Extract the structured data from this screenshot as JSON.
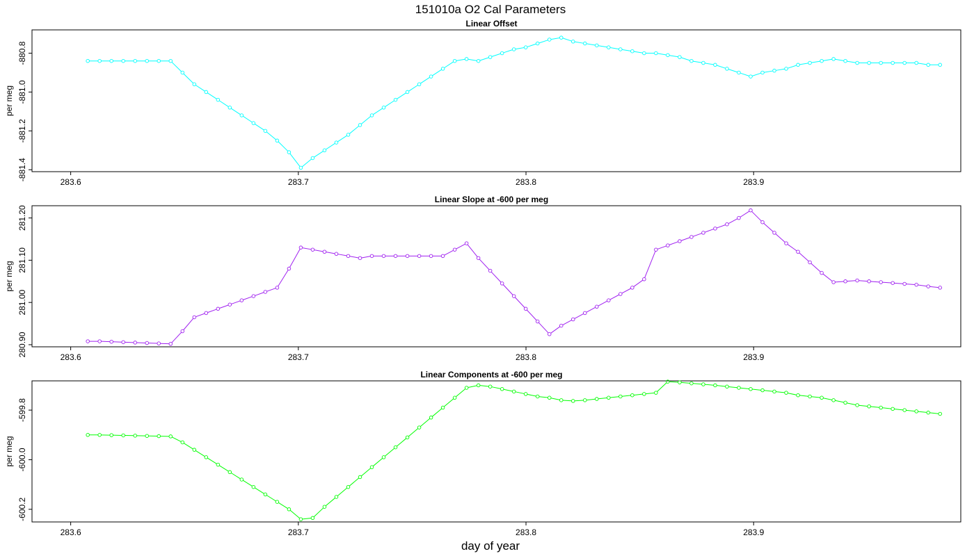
{
  "figure": {
    "title": "151010a   O2 Cal Parameters",
    "xlabel": "day of year"
  },
  "chart_data": [
    {
      "type": "line",
      "title": "Linear Offset",
      "ylabel": "per meg",
      "color": "#00ffff",
      "xlim": [
        283.583,
        283.991
      ],
      "ylim": [
        -881.41,
        -880.68
      ],
      "xticks": [
        "283.6",
        "283.7",
        "283.8",
        "283.9"
      ],
      "xtick_values": [
        283.6,
        283.7,
        283.8,
        283.9
      ],
      "yticks": [
        "-880.8",
        "-881.0",
        "-881.2",
        "-881.4"
      ],
      "ytick_values": [
        -880.8,
        -881.0,
        -881.2,
        -881.4
      ],
      "x": [
        283.6075,
        283.6127,
        283.6179,
        283.6231,
        283.6283,
        283.6335,
        283.6387,
        283.6439,
        283.6491,
        283.6543,
        283.6595,
        283.6647,
        283.6699,
        283.6751,
        283.6803,
        283.6855,
        283.6907,
        283.6959,
        283.7011,
        283.7063,
        283.7115,
        283.7167,
        283.7219,
        283.7271,
        283.7323,
        283.7375,
        283.7427,
        283.7479,
        283.7531,
        283.7583,
        283.7635,
        283.7687,
        283.7739,
        283.7791,
        283.7843,
        283.7895,
        283.7947,
        283.7999,
        283.8051,
        283.8103,
        283.8155,
        283.8207,
        283.8259,
        283.8311,
        283.8363,
        283.8415,
        283.8467,
        283.8519,
        283.8571,
        283.8623,
        283.8675,
        283.8727,
        283.8779,
        283.8831,
        283.8883,
        283.8935,
        283.8987,
        283.9039,
        283.9091,
        283.9143,
        283.9195,
        283.9247,
        283.9299,
        283.9351,
        283.9403,
        283.9455,
        283.9507,
        283.9559,
        283.9611,
        283.9663,
        283.9715,
        283.9767,
        283.9819
      ],
      "values": [
        -880.84,
        -880.84,
        -880.84,
        -880.84,
        -880.84,
        -880.84,
        -880.84,
        -880.84,
        -880.9,
        -880.96,
        -881.0,
        -881.04,
        -881.08,
        -881.12,
        -881.16,
        -881.2,
        -881.25,
        -881.31,
        -881.39,
        -881.34,
        -881.3,
        -881.26,
        -881.22,
        -881.17,
        -881.12,
        -881.08,
        -881.04,
        -881.0,
        -880.96,
        -880.92,
        -880.88,
        -880.84,
        -880.83,
        -880.84,
        -880.82,
        -880.8,
        -880.78,
        -880.77,
        -880.75,
        -880.73,
        -880.72,
        -880.74,
        -880.75,
        -880.76,
        -880.77,
        -880.78,
        -880.79,
        -880.8,
        -880.8,
        -880.81,
        -880.82,
        -880.84,
        -880.85,
        -880.86,
        -880.88,
        -880.9,
        -880.92,
        -880.9,
        -880.89,
        -880.88,
        -880.86,
        -880.85,
        -880.84,
        -880.83,
        -880.84,
        -880.85,
        -880.85,
        -880.85,
        -880.85,
        -880.85,
        -880.85,
        -880.86,
        -880.86
      ]
    },
    {
      "type": "line",
      "title": "Linear Slope at -600 per meg",
      "ylabel": "per meg",
      "color": "#a020f0",
      "xlim": [
        283.583,
        283.991
      ],
      "ylim": [
        280.895,
        281.229
      ],
      "xticks": [
        "283.6",
        "283.7",
        "283.8",
        "283.9"
      ],
      "xtick_values": [
        283.6,
        283.7,
        283.8,
        283.9
      ],
      "yticks": [
        "280.90",
        "281.00",
        "281.10",
        "281.20"
      ],
      "ytick_values": [
        280.9,
        281.0,
        281.1,
        281.2
      ],
      "x": [
        283.6075,
        283.6127,
        283.6179,
        283.6231,
        283.6283,
        283.6335,
        283.6387,
        283.6439,
        283.6491,
        283.6543,
        283.6595,
        283.6647,
        283.6699,
        283.6751,
        283.6803,
        283.6855,
        283.6907,
        283.6959,
        283.7011,
        283.7063,
        283.7115,
        283.7167,
        283.7219,
        283.7271,
        283.7323,
        283.7375,
        283.7427,
        283.7479,
        283.7531,
        283.7583,
        283.7635,
        283.7687,
        283.7739,
        283.7791,
        283.7843,
        283.7895,
        283.7947,
        283.7999,
        283.8051,
        283.8103,
        283.8155,
        283.8207,
        283.8259,
        283.8311,
        283.8363,
        283.8415,
        283.8467,
        283.8519,
        283.8571,
        283.8623,
        283.8675,
        283.8727,
        283.8779,
        283.8831,
        283.8883,
        283.8935,
        283.8987,
        283.9039,
        283.9091,
        283.9143,
        283.9195,
        283.9247,
        283.9299,
        283.9351,
        283.9403,
        283.9455,
        283.9507,
        283.9559,
        283.9611,
        283.9663,
        283.9715,
        283.9767,
        283.9819
      ],
      "values": [
        280.908,
        280.908,
        280.907,
        280.906,
        280.905,
        280.904,
        280.903,
        280.902,
        280.932,
        280.965,
        280.975,
        280.985,
        280.995,
        281.005,
        281.015,
        281.025,
        281.035,
        281.08,
        281.13,
        281.125,
        281.12,
        281.115,
        281.11,
        281.105,
        281.11,
        281.11,
        281.11,
        281.11,
        281.11,
        281.11,
        281.11,
        281.125,
        281.14,
        281.105,
        281.075,
        281.045,
        281.015,
        280.985,
        280.955,
        280.925,
        280.945,
        280.96,
        280.975,
        280.99,
        281.005,
        281.02,
        281.035,
        281.055,
        281.125,
        281.135,
        281.145,
        281.155,
        281.165,
        281.175,
        281.185,
        281.2,
        281.218,
        281.19,
        281.165,
        281.14,
        281.12,
        281.095,
        281.07,
        281.048,
        281.05,
        281.052,
        281.05,
        281.048,
        281.046,
        281.044,
        281.042,
        281.038,
        281.035
      ]
    },
    {
      "type": "line",
      "title": "Linear Components at -600 per meg",
      "ylabel": "per meg",
      "color": "#00ff00",
      "xlim": [
        283.583,
        283.991
      ],
      "ylim": [
        -600.251,
        -599.682
      ],
      "xticks": [
        "283.6",
        "283.7",
        "283.8",
        "283.9"
      ],
      "xtick_values": [
        283.6,
        283.7,
        283.8,
        283.9
      ],
      "yticks": [
        "-599.8",
        "-600.0",
        "-600.2"
      ],
      "ytick_values": [
        -599.8,
        -600.0,
        -600.2
      ],
      "x": [
        283.6075,
        283.6127,
        283.6179,
        283.6231,
        283.6283,
        283.6335,
        283.6387,
        283.6439,
        283.6491,
        283.6543,
        283.6595,
        283.6647,
        283.6699,
        283.6751,
        283.6803,
        283.6855,
        283.6907,
        283.6959,
        283.7011,
        283.7063,
        283.7115,
        283.7167,
        283.7219,
        283.7271,
        283.7323,
        283.7375,
        283.7427,
        283.7479,
        283.7531,
        283.7583,
        283.7635,
        283.7687,
        283.7739,
        283.7791,
        283.7843,
        283.7895,
        283.7947,
        283.7999,
        283.8051,
        283.8103,
        283.8155,
        283.8207,
        283.8259,
        283.8311,
        283.8363,
        283.8415,
        283.8467,
        283.8519,
        283.8571,
        283.8623,
        283.8675,
        283.8727,
        283.8779,
        283.8831,
        283.8883,
        283.8935,
        283.8987,
        283.9039,
        283.9091,
        283.9143,
        283.9195,
        283.9247,
        283.9299,
        283.9351,
        283.9403,
        283.9455,
        283.9507,
        283.9559,
        283.9611,
        283.9663,
        283.9715,
        283.9767,
        283.9819
      ],
      "values": [
        -599.9,
        -599.9,
        -599.901,
        -599.902,
        -599.903,
        -599.904,
        -599.905,
        -599.906,
        -599.93,
        -599.96,
        -599.99,
        -600.02,
        -600.05,
        -600.08,
        -600.11,
        -600.14,
        -600.17,
        -600.2,
        -600.24,
        -600.235,
        -600.19,
        -600.15,
        -600.11,
        -600.07,
        -600.03,
        -599.99,
        -599.95,
        -599.91,
        -599.87,
        -599.83,
        -599.79,
        -599.75,
        -599.71,
        -599.7,
        -599.705,
        -599.715,
        -599.725,
        -599.735,
        -599.745,
        -599.75,
        -599.76,
        -599.763,
        -599.76,
        -599.755,
        -599.75,
        -599.745,
        -599.74,
        -599.735,
        -599.73,
        -599.685,
        -599.688,
        -599.692,
        -599.696,
        -599.7,
        -599.705,
        -599.71,
        -599.715,
        -599.72,
        -599.725,
        -599.73,
        -599.74,
        -599.745,
        -599.75,
        -599.76,
        -599.77,
        -599.78,
        -599.785,
        -599.79,
        -599.795,
        -599.8,
        -599.805,
        -599.81,
        -599.815
      ]
    }
  ]
}
